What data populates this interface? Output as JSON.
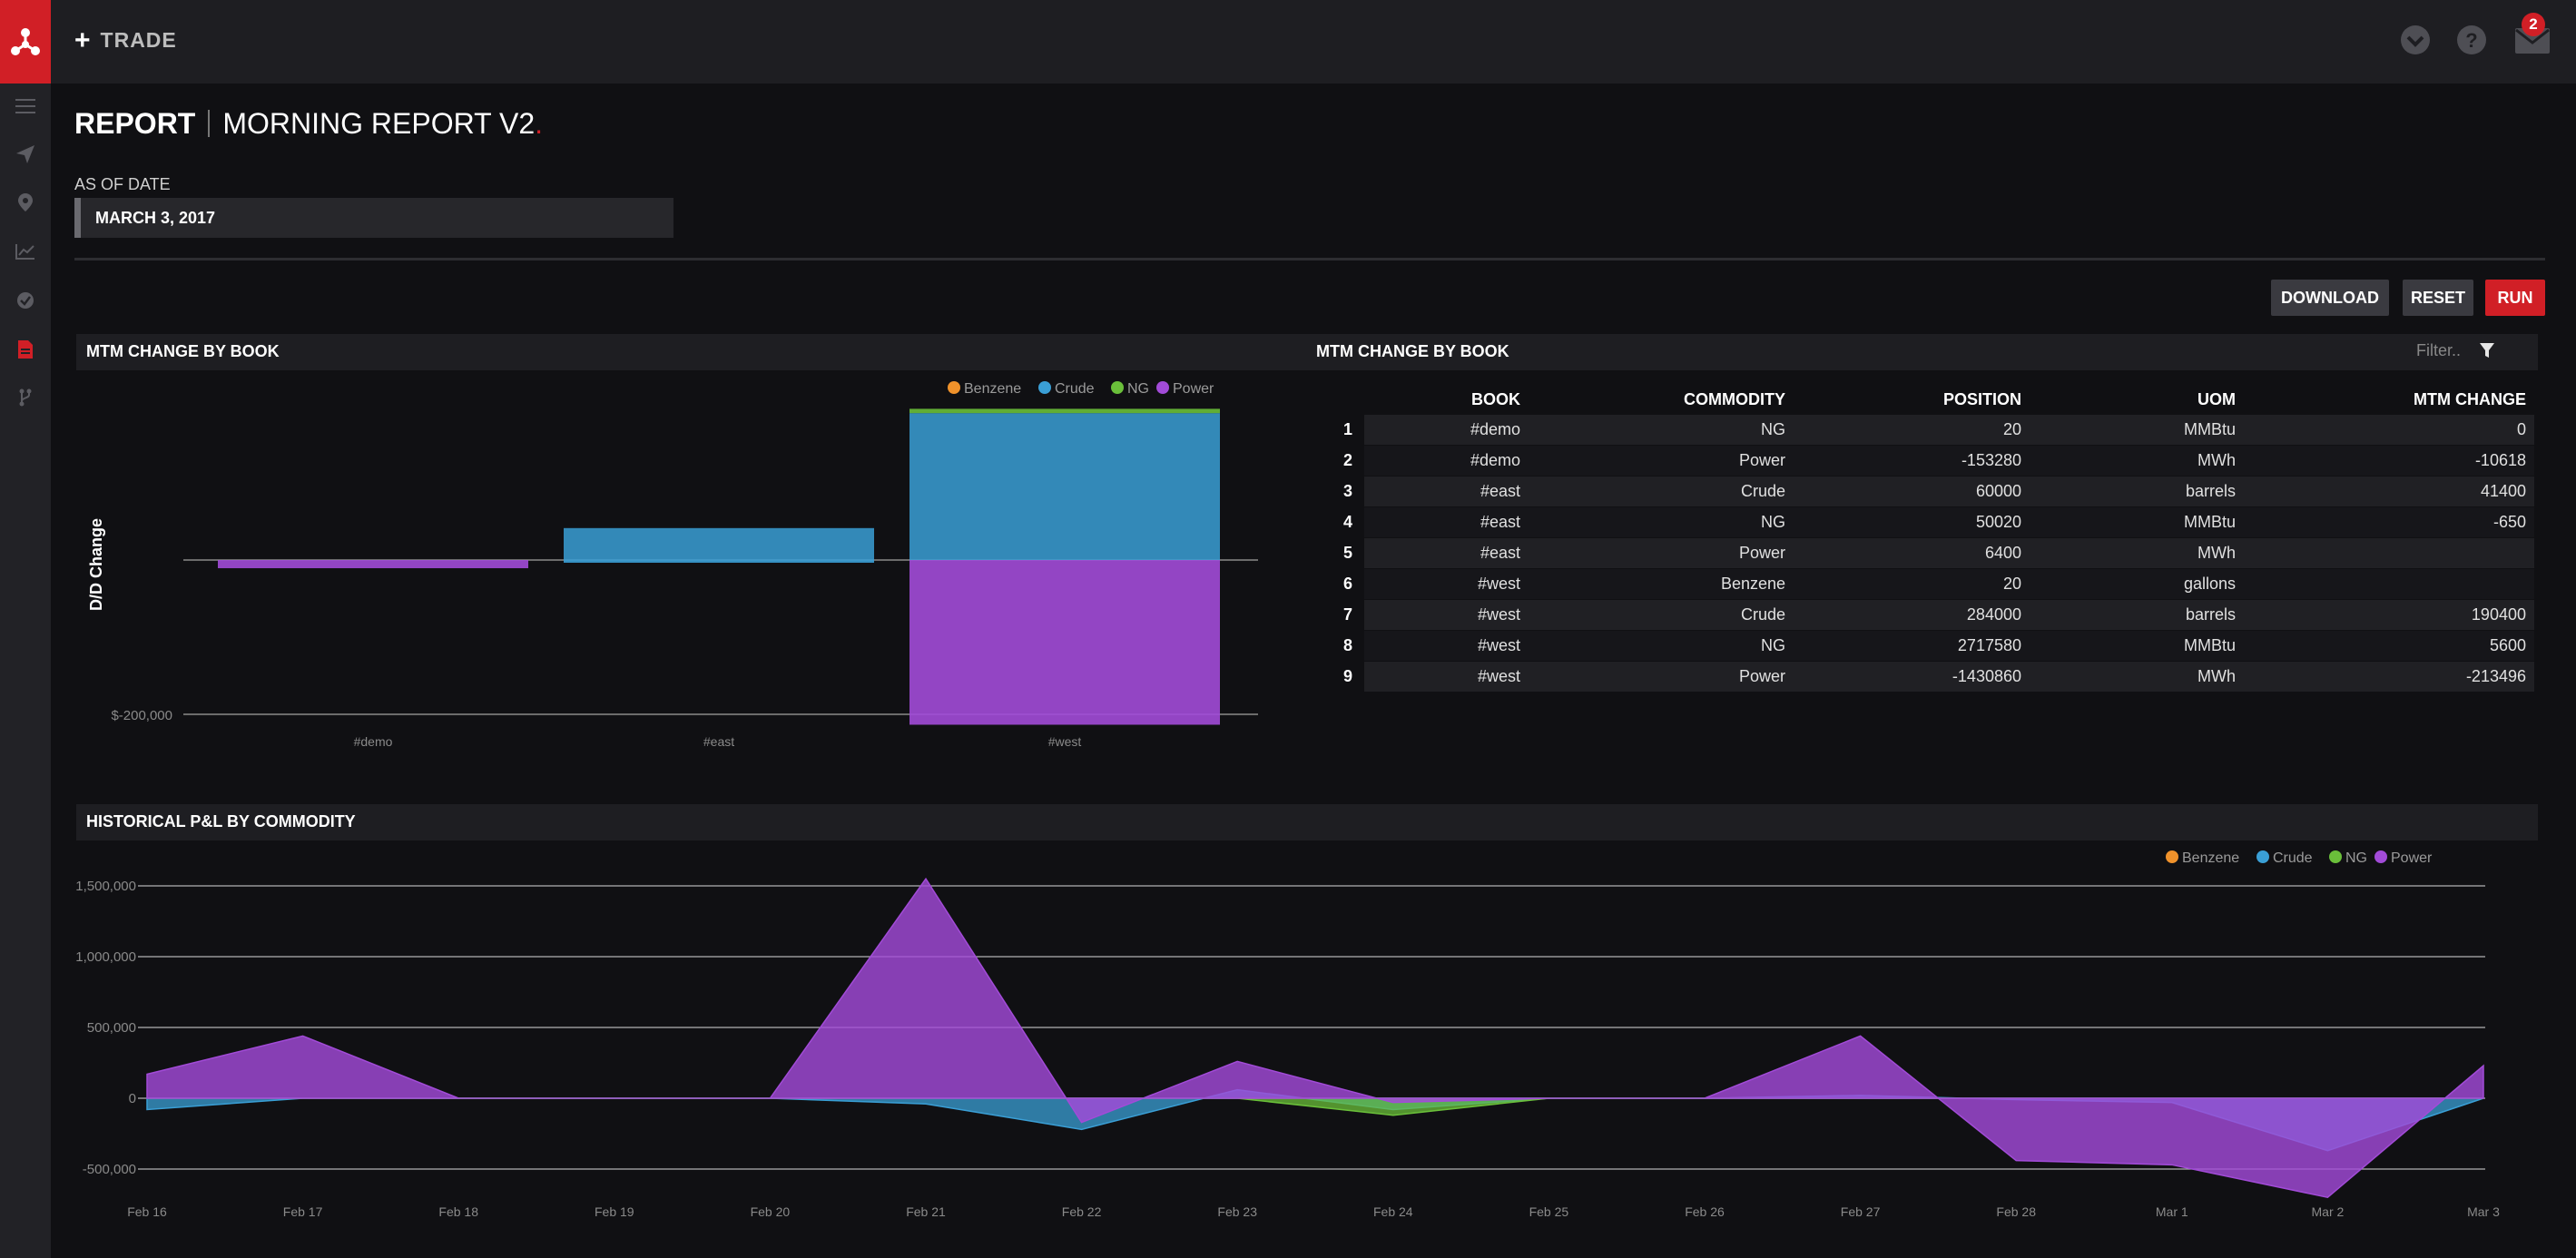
{
  "topbar": {
    "trade_label": "TRADE",
    "mail_count": "2"
  },
  "report": {
    "label": "REPORT",
    "name": "MORNING REPORT V2",
    "dot": "."
  },
  "asof": {
    "label": "AS OF DATE",
    "value": "MARCH 3, 2017"
  },
  "buttons": {
    "download": "DOWNLOAD",
    "reset": "RESET",
    "run": "RUN"
  },
  "colors": {
    "brand": "#d11f26",
    "benzene": "#f0922b",
    "crude": "#3a9fd6",
    "ng": "#6abf3a",
    "power": "#a24bd8"
  },
  "icons": [
    "menu-icon",
    "send-icon",
    "map-pin-icon",
    "trend-chart-icon",
    "check-circle-icon",
    "document-icon",
    "branch-icon",
    "chevron-down-circle-icon",
    "help-icon",
    "mail-icon",
    "filter-icon"
  ],
  "bar_panel": {
    "title": "MTM CHANGE BY BOOK"
  },
  "table_panel": {
    "title": "MTM CHANGE BY BOOK",
    "filter_placeholder": "Filter..",
    "columns": [
      "BOOK",
      "COMMODITY",
      "POSITION",
      "UOM",
      "MTM CHANGE"
    ],
    "rows": [
      [
        "1",
        "#demo",
        "NG",
        "20",
        "MMBtu",
        "0"
      ],
      [
        "2",
        "#demo",
        "Power",
        "-153280",
        "MWh",
        "-10618"
      ],
      [
        "3",
        "#east",
        "Crude",
        "60000",
        "barrels",
        "41400"
      ],
      [
        "4",
        "#east",
        "NG",
        "50020",
        "MMBtu",
        "-650"
      ],
      [
        "5",
        "#east",
        "Power",
        "6400",
        "MWh",
        ""
      ],
      [
        "6",
        "#west",
        "Benzene",
        "20",
        "gallons",
        ""
      ],
      [
        "7",
        "#west",
        "Crude",
        "284000",
        "barrels",
        "190400"
      ],
      [
        "8",
        "#west",
        "NG",
        "2717580",
        "MMBtu",
        "5600"
      ],
      [
        "9",
        "#west",
        "Power",
        "-1430860",
        "MWh",
        "-213496"
      ]
    ]
  },
  "line_panel": {
    "title": "HISTORICAL P&L BY COMMODITY"
  },
  "chart_data": [
    {
      "type": "bar",
      "stacked": true,
      "ylabel": "D/D Change",
      "categories": [
        "#demo",
        "#east",
        "#west"
      ],
      "legend": [
        "Benzene",
        "Crude",
        "NG",
        "Power"
      ],
      "legend_position": "top-right",
      "series": [
        {
          "name": "Benzene",
          "values": [
            0,
            0,
            0
          ]
        },
        {
          "name": "Crude",
          "values": [
            0,
            41400,
            190400
          ]
        },
        {
          "name": "NG",
          "values": [
            0,
            -650,
            5600
          ]
        },
        {
          "name": "Power",
          "values": [
            -10618,
            0,
            -213496
          ]
        }
      ],
      "yticks": [
        "$-200,000"
      ],
      "ylim": [
        -215000,
        200000
      ]
    },
    {
      "type": "area",
      "legend": [
        "Benzene",
        "Crude",
        "NG",
        "Power"
      ],
      "legend_position": "top-right",
      "x": [
        "Feb 16",
        "Feb 17",
        "Feb 18",
        "Feb 19",
        "Feb 20",
        "Feb 21",
        "Feb 22",
        "Feb 23",
        "Feb 24",
        "Feb 25",
        "Feb 26",
        "Feb 27",
        "Feb 28",
        "Mar 1",
        "Mar 2",
        "Mar 3"
      ],
      "series": [
        {
          "name": "Crude",
          "values": [
            -80000,
            0,
            0,
            0,
            0,
            -40000,
            -220000,
            60000,
            -80000,
            0,
            0,
            20000,
            -10000,
            -30000,
            -370000,
            0
          ]
        },
        {
          "name": "NG",
          "values": [
            0,
            0,
            0,
            0,
            0,
            0,
            0,
            0,
            -120000,
            0,
            0,
            0,
            0,
            0,
            0,
            0
          ]
        },
        {
          "name": "Power",
          "values": [
            170000,
            440000,
            0,
            0,
            0,
            1550000,
            -170000,
            260000,
            -30000,
            0,
            0,
            440000,
            -440000,
            -470000,
            -700000,
            230000
          ]
        }
      ],
      "yticks": [
        "1,500,000",
        "1,000,000",
        "500,000",
        "0",
        "-500,000"
      ],
      "ylim": [
        -750000,
        1550000
      ],
      "grid": true
    }
  ]
}
